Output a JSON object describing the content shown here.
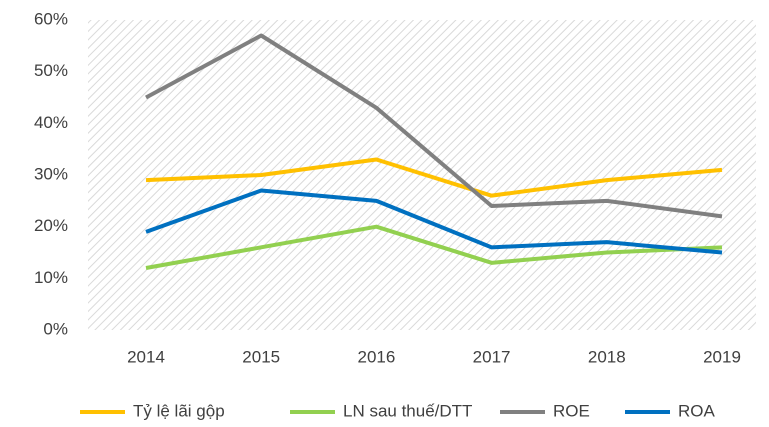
{
  "chart_data": {
    "type": "line",
    "categories": [
      "2014",
      "2015",
      "2016",
      "2017",
      "2018",
      "2019"
    ],
    "series": [
      {
        "name": "Tỷ lệ lãi gộp",
        "color": "#FFC000",
        "values": [
          29,
          30,
          33,
          26,
          29,
          31
        ]
      },
      {
        "name": "LN sau thuế/DTT",
        "color": "#92D050",
        "values": [
          12,
          16,
          20,
          13,
          15,
          16
        ]
      },
      {
        "name": "ROE",
        "color": "#808080",
        "values": [
          45,
          57,
          43,
          24,
          25,
          22
        ]
      },
      {
        "name": "ROA",
        "color": "#0070C0",
        "values": [
          19,
          27,
          25,
          16,
          17,
          15
        ]
      }
    ],
    "ylim": [
      0,
      60
    ],
    "yticks": [
      {
        "value": 0,
        "label": "0%"
      },
      {
        "value": 10,
        "label": "10%"
      },
      {
        "value": 20,
        "label": "20%"
      },
      {
        "value": 30,
        "label": "30%"
      },
      {
        "value": 40,
        "label": "40%"
      },
      {
        "value": 50,
        "label": "50%"
      },
      {
        "value": 60,
        "label": "60%"
      }
    ],
    "legend": "bottom"
  }
}
